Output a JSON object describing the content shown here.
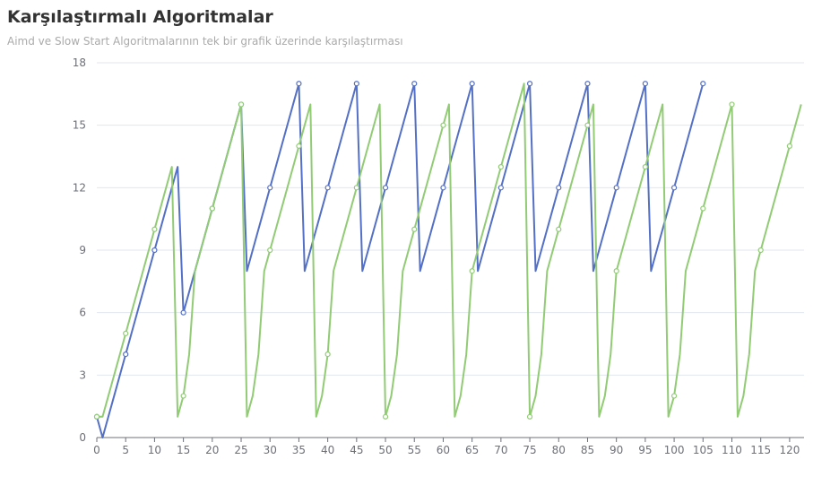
{
  "chart_data": {
    "type": "line",
    "title": "Karşılaştırmalı Algoritmalar",
    "subtitle": "Aimd ve Slow Start Algoritmalarının tek bir grafik üzerinde karşılaştırması",
    "x": [
      0,
      1,
      2,
      3,
      4,
      5,
      6,
      7,
      8,
      9,
      10,
      11,
      12,
      13,
      14,
      15,
      16,
      17,
      18,
      19,
      20,
      21,
      22,
      23,
      24,
      25,
      26,
      27,
      28,
      29,
      30,
      31,
      32,
      33,
      34,
      35,
      36,
      37,
      38,
      39,
      40,
      41,
      42,
      43,
      44,
      45,
      46,
      47,
      48,
      49,
      50,
      51,
      52,
      53,
      54,
      55,
      56,
      57,
      58,
      59,
      60,
      61,
      62,
      63,
      64,
      65,
      66,
      67,
      68,
      69,
      70,
      71,
      72,
      73,
      74,
      75,
      76,
      77,
      78,
      79,
      80,
      81,
      82,
      83,
      84,
      85,
      86,
      87,
      88,
      89,
      90,
      91,
      92,
      93,
      94,
      95,
      96,
      97,
      98,
      99,
      100,
      101,
      102,
      103,
      104,
      105,
      106,
      107,
      108,
      109,
      110,
      111,
      112,
      113,
      114,
      115,
      116,
      117,
      118,
      119,
      120,
      121,
      122
    ],
    "series": [
      {
        "color": "#5470c6",
        "values": [
          1,
          0,
          1,
          2,
          3,
          4,
          5,
          6,
          7,
          8,
          9,
          10,
          11,
          12,
          13,
          6,
          7,
          8,
          9,
          10,
          11,
          12,
          13,
          14,
          15,
          16,
          8,
          9,
          10,
          11,
          12,
          13,
          14,
          15,
          16,
          17,
          8,
          9,
          10,
          11,
          12,
          13,
          14,
          15,
          16,
          17,
          8,
          9,
          10,
          11,
          12,
          13,
          14,
          15,
          16,
          17,
          8,
          9,
          10,
          11,
          12,
          13,
          14,
          15,
          16,
          17,
          8,
          9,
          10,
          11,
          12,
          13,
          14,
          15,
          16,
          17,
          8,
          9,
          10,
          11,
          12,
          13,
          14,
          15,
          16,
          17,
          8,
          9,
          10,
          11,
          12,
          13,
          14,
          15,
          16,
          17,
          8,
          9,
          10,
          11,
          12,
          13,
          14,
          15,
          16,
          17,
          null,
          null,
          null,
          null,
          null,
          null,
          null,
          null,
          null,
          null,
          null,
          null,
          null,
          null,
          null,
          null,
          null
        ]
      },
      {
        "color": "#91cc75",
        "values": [
          1,
          1,
          2,
          3,
          4,
          5,
          6,
          7,
          8,
          9,
          10,
          11,
          12,
          13,
          1,
          2,
          4,
          8,
          9,
          10,
          11,
          12,
          13,
          14,
          15,
          16,
          1,
          2,
          4,
          8,
          9,
          10,
          11,
          12,
          13,
          14,
          15,
          16,
          1,
          2,
          4,
          8,
          9,
          10,
          11,
          12,
          13,
          14,
          15,
          16,
          1,
          2,
          4,
          8,
          9,
          10,
          11,
          12,
          13,
          14,
          15,
          16,
          1,
          2,
          4,
          8,
          9,
          10,
          11,
          12,
          13,
          14,
          15,
          16,
          17,
          1,
          2,
          4,
          8,
          9,
          10,
          11,
          12,
          13,
          14,
          15,
          16,
          1,
          2,
          4,
          8,
          9,
          10,
          11,
          12,
          13,
          14,
          15,
          16,
          1,
          2,
          4,
          8,
          9,
          10,
          11,
          12,
          13,
          14,
          15,
          16,
          1,
          2,
          4,
          8,
          9,
          10,
          11,
          12,
          13,
          14,
          15,
          16
        ]
      }
    ],
    "xlim": [
      0,
      122.5
    ],
    "xticks": [
      0,
      5,
      10,
      15,
      20,
      25,
      30,
      35,
      40,
      45,
      50,
      55,
      60,
      65,
      70,
      75,
      80,
      85,
      90,
      95,
      100,
      105,
      110,
      115,
      120
    ],
    "ylim": [
      0,
      18
    ],
    "yticks": [
      0,
      3,
      6,
      9,
      12,
      15,
      18
    ],
    "grid": true
  }
}
